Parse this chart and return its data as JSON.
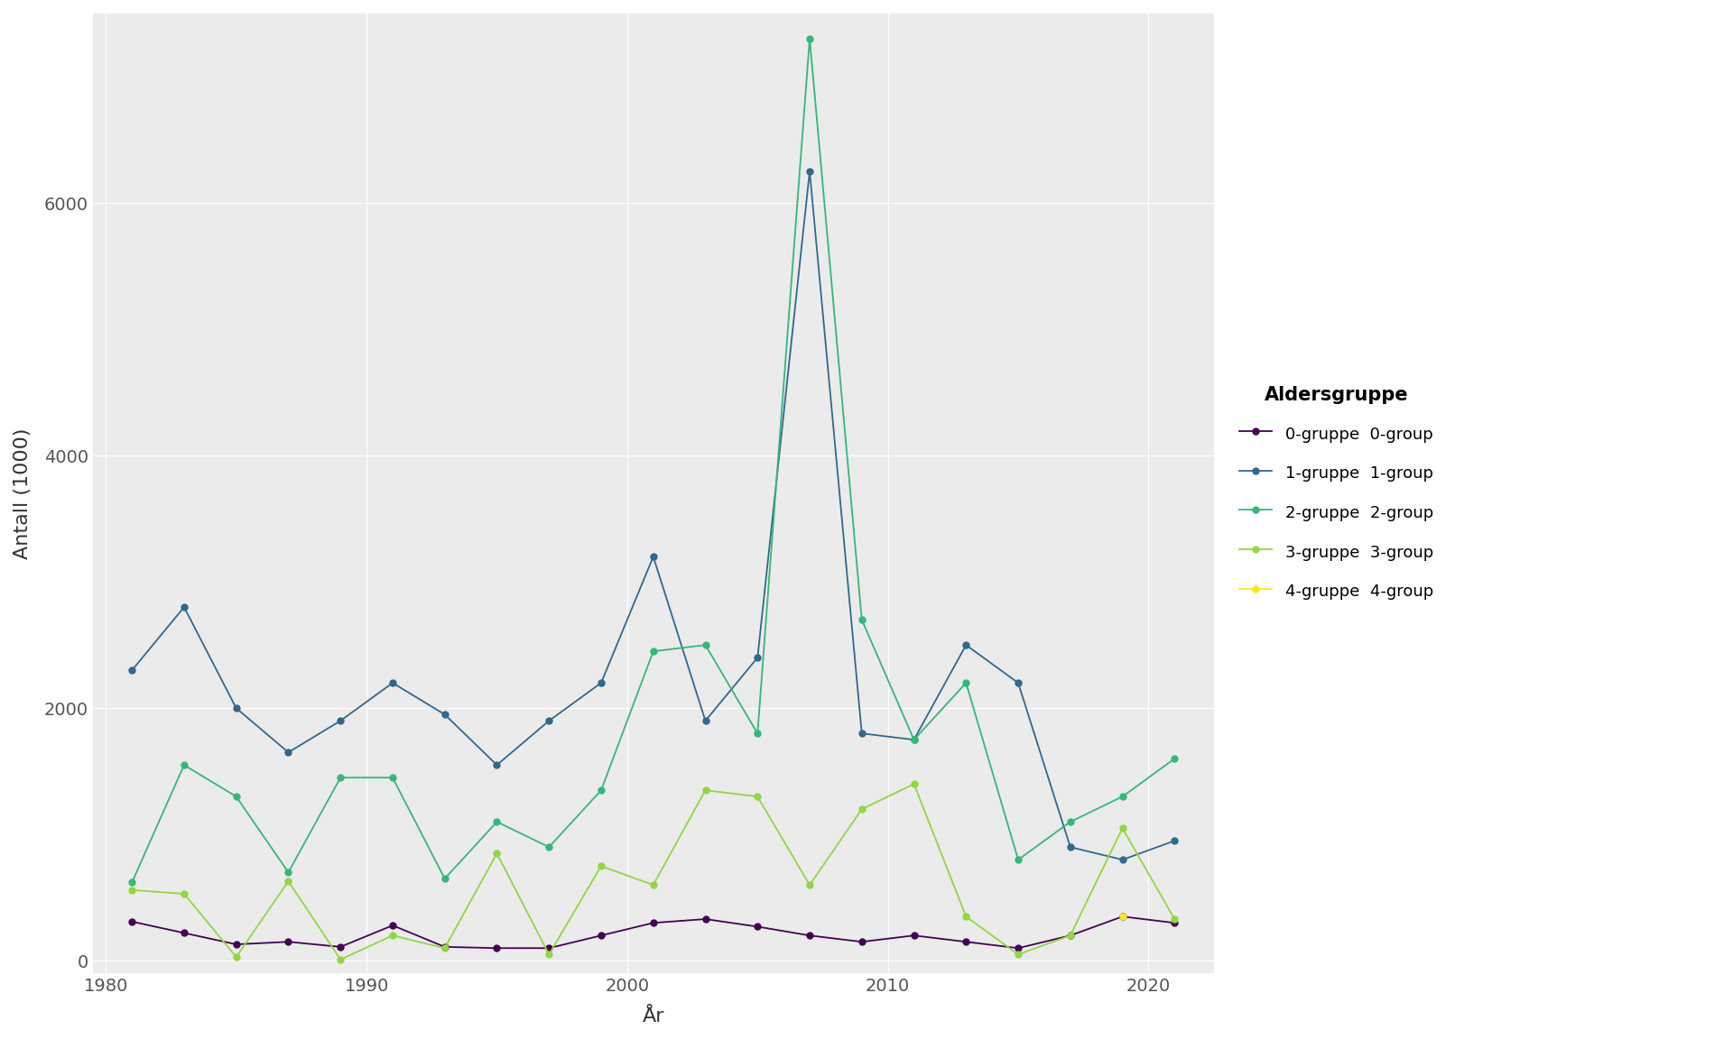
{
  "title": "",
  "xlabel": "År",
  "ylabel": "Antall (1000)",
  "legend_title": "Aldersgruppe",
  "xlim": [
    1979.5,
    2022.5
  ],
  "ylim": [
    -100,
    7500
  ],
  "yticks": [
    0,
    2000,
    4000,
    6000
  ],
  "xticks": [
    1980,
    1990,
    2000,
    2010,
    2020
  ],
  "background_color": "#ffffff",
  "panel_background": "#f5f5f5",
  "grid_color": "#ffffff",
  "series": [
    {
      "label": "0-gruppe  0-group",
      "color": "#440154",
      "years": [
        1981,
        1983,
        1985,
        1987,
        1989,
        1991,
        1993,
        1995,
        1997,
        1999,
        2001,
        2003,
        2005,
        2007,
        2009,
        2011,
        2013,
        2015,
        2017,
        2019,
        2021
      ],
      "values": [
        310,
        220,
        130,
        150,
        110,
        280,
        110,
        100,
        100,
        200,
        300,
        330,
        270,
        200,
        150,
        200,
        150,
        100,
        200,
        350,
        300
      ]
    },
    {
      "label": "1-gruppe  1-group",
      "color": "#30688e",
      "years": [
        1981,
        1983,
        1985,
        1987,
        1989,
        1991,
        1993,
        1995,
        1997,
        1999,
        2001,
        2003,
        2005,
        2007,
        2009,
        2011,
        2013,
        2015,
        2017,
        2019,
        2021
      ],
      "values": [
        2300,
        2800,
        2000,
        1650,
        1900,
        2200,
        1950,
        1550,
        1900,
        2200,
        3200,
        1900,
        2400,
        6250,
        1800,
        1750,
        2500,
        2200,
        900,
        800,
        950
      ]
    },
    {
      "label": "2-gruppe  2-group",
      "color": "#35b779",
      "years": [
        1981,
        1983,
        1985,
        1987,
        1989,
        1991,
        1993,
        1995,
        1997,
        1999,
        2001,
        2003,
        2005,
        2007,
        2009,
        2011,
        2013,
        2015,
        2017,
        2019,
        2021
      ],
      "values": [
        620,
        1550,
        1300,
        700,
        1450,
        1450,
        650,
        1100,
        900,
        1350,
        2450,
        2500,
        1800,
        7300,
        2700,
        1750,
        2200,
        800,
        1100,
        1300,
        1600
      ]
    },
    {
      "label": "3-gruppe  3-group",
      "color": "#90d743",
      "years": [
        1981,
        1983,
        1985,
        1987,
        1989,
        1991,
        1993,
        1995,
        1997,
        1999,
        2001,
        2003,
        2005,
        2007,
        2009,
        2011,
        2013,
        2015,
        2017,
        2019,
        2021
      ],
      "values": [
        560,
        530,
        30,
        630,
        10,
        200,
        100,
        850,
        50,
        750,
        600,
        1350,
        1300,
        600,
        1200,
        1400,
        350,
        50,
        200,
        1050,
        330
      ]
    },
    {
      "label": "4-gruppe  4-group",
      "color": "#fde725",
      "years": [
        2019
      ],
      "values": [
        350
      ]
    }
  ]
}
